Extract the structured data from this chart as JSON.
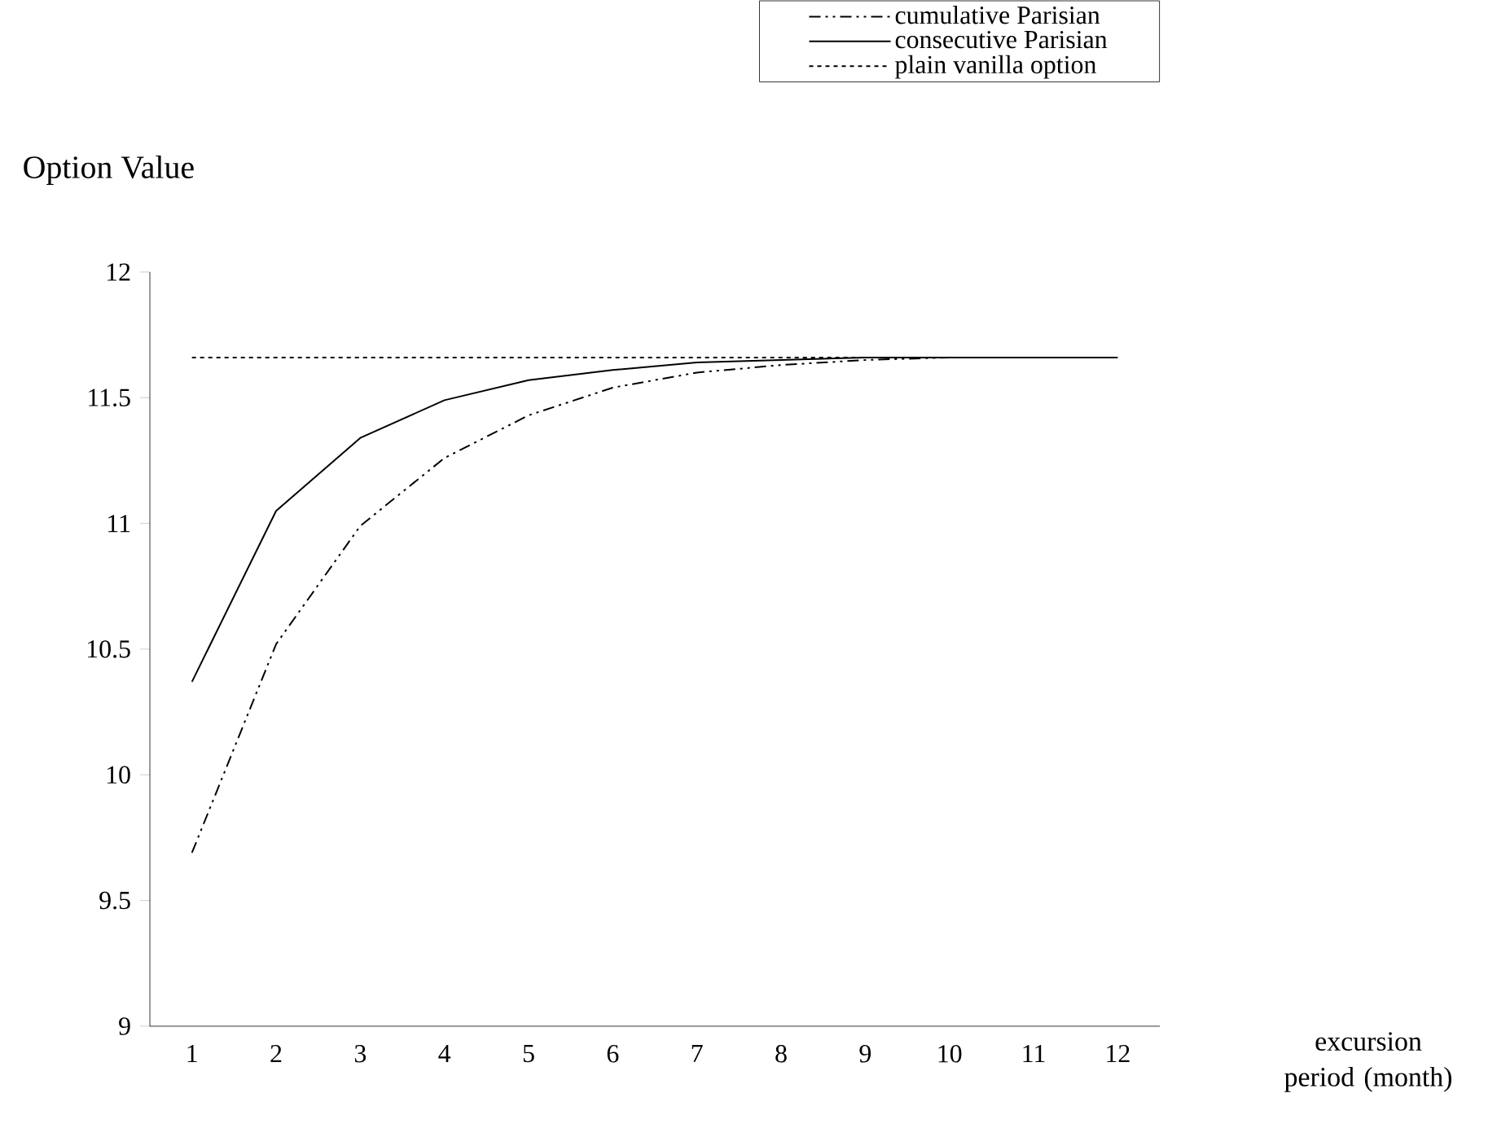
{
  "chart_data": {
    "type": "line",
    "ylabel": "Option Value",
    "annotations": [
      "excursion period (month)"
    ],
    "categories": [
      "1",
      "2",
      "3",
      "4",
      "5",
      "6",
      "7",
      "8",
      "9",
      "10",
      "11",
      "12"
    ],
    "series": [
      {
        "name": "cumulative Parisian",
        "color": "#000000",
        "line_style": "dashed",
        "values": [
          9.69,
          10.52,
          10.99,
          11.26,
          11.43,
          11.54,
          11.6,
          11.63,
          11.65,
          11.66,
          11.66,
          11.66
        ]
      },
      {
        "name": "consecutive Parisian",
        "color": "#000000",
        "line_style": "solid",
        "values": [
          10.37,
          11.05,
          11.34,
          11.49,
          11.57,
          11.61,
          11.64,
          11.65,
          11.66,
          11.66,
          11.66,
          11.66
        ]
      },
      {
        "name": "plain vanilla option",
        "color": "#000000",
        "line_style": "dotted",
        "values": [
          11.66,
          11.66,
          11.66,
          11.66,
          11.66,
          11.66,
          11.66,
          11.66,
          11.66,
          11.66,
          11.66,
          11.66
        ]
      }
    ],
    "ylim": [
      9,
      12
    ],
    "yticks": [
      9,
      9.5,
      10,
      10.5,
      11,
      11.5,
      12
    ],
    "grid": false,
    "legend": "top",
    "marker": "none"
  }
}
